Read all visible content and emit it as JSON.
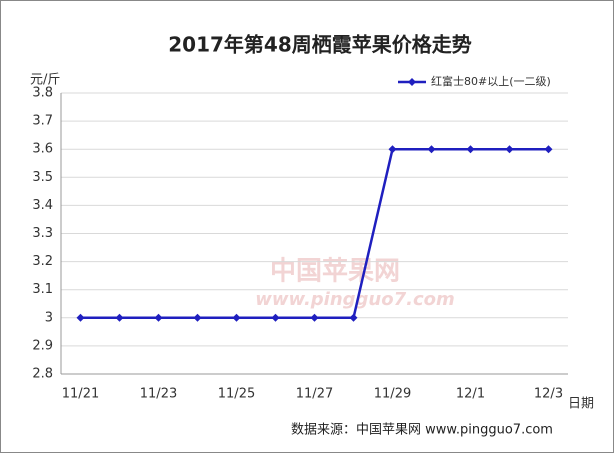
{
  "chart_data": {
    "type": "line",
    "title": "2017年第48周栖霞苹果价格走势",
    "y_label": "元/斤",
    "x_label": "日期",
    "categories": [
      "11/21",
      null,
      "11/23",
      null,
      "11/25",
      null,
      "11/27",
      null,
      "11/29",
      null,
      "12/1",
      null,
      "12/3"
    ],
    "series": [
      {
        "name": "红富士80#以上(一二级)",
        "color": "#1f1fbf",
        "values": [
          3,
          3,
          3,
          3,
          3,
          3,
          3,
          3,
          3.6,
          3.6,
          3.6,
          3.6,
          3.6
        ]
      }
    ],
    "ylim": [
      2.8,
      3.8
    ],
    "yticks": [
      2.8,
      2.9,
      3,
      3.1,
      3.2,
      3.3,
      3.4,
      3.5,
      3.6,
      3.7,
      3.8
    ],
    "grid": true,
    "legend": "top-right",
    "watermark": [
      "中国苹果网",
      "www.pingguo7.com"
    ],
    "source": "数据来源：中国苹果网 www.pingguo7.com"
  }
}
